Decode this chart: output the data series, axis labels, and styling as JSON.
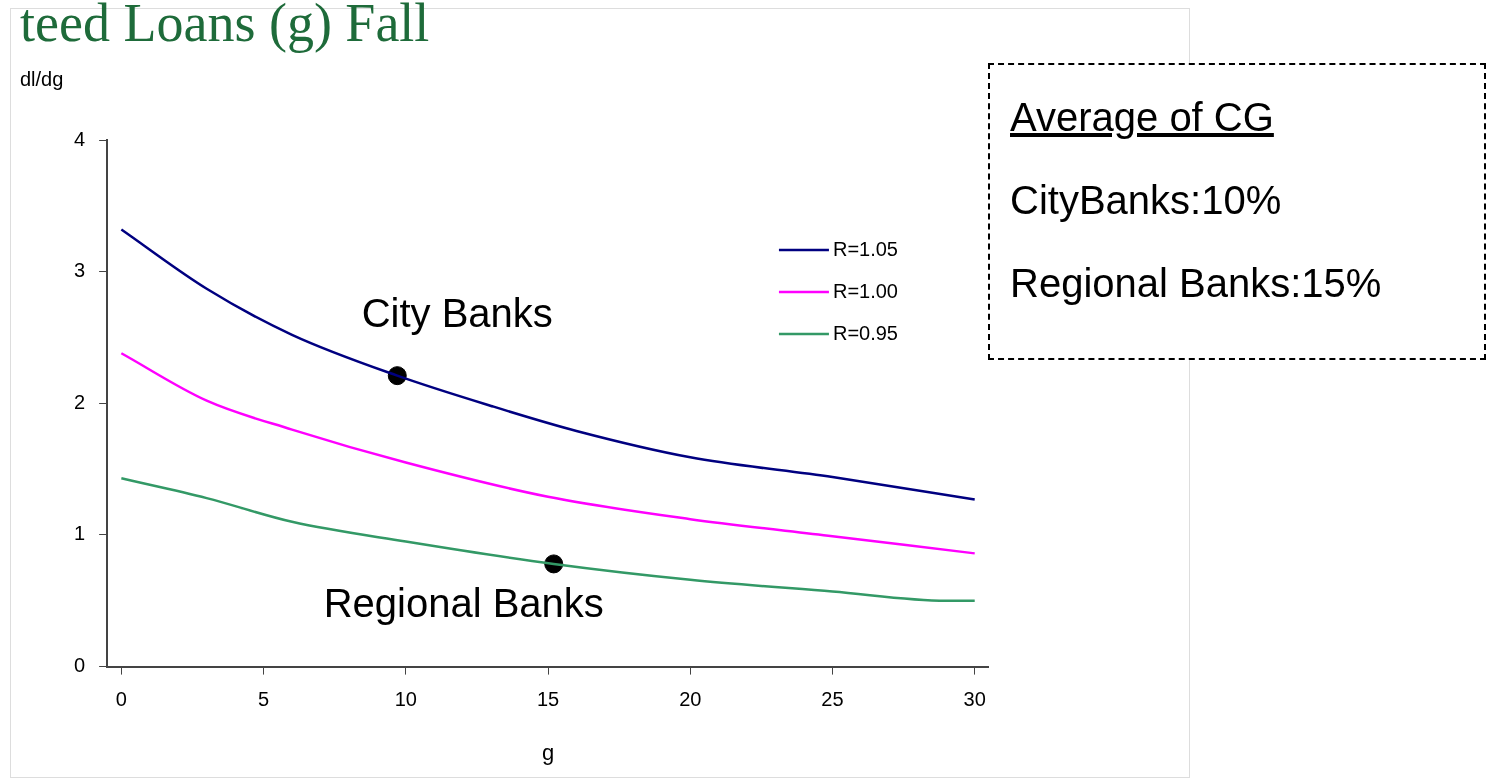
{
  "chart_data": {
    "type": "line",
    "title": "teed Loans (g) Fall",
    "xlabel": "g",
    "ylabel": "dl/dg",
    "xlim": [
      -0.5,
      30.5
    ],
    "xticks": [
      0,
      5,
      10,
      15,
      20,
      25,
      30
    ],
    "ylim": [
      0,
      4
    ],
    "yticks": [
      0,
      1,
      2,
      3,
      4
    ],
    "grid": false,
    "legend": "top right",
    "marker": "none",
    "line_style": "solid",
    "series": [
      {
        "name": "R=1.05",
        "color": "#000080",
        "x": [
          0,
          3,
          6,
          9.7,
          13,
          16,
          20,
          25,
          30
        ],
        "values": [
          3.32,
          2.87,
          2.52,
          2.21,
          1.98,
          1.79,
          1.59,
          1.44,
          1.27
        ]
      },
      {
        "name": "R=1.00",
        "color": "#ff00ff",
        "x": [
          0,
          3,
          6,
          10,
          15,
          20,
          25,
          30
        ],
        "values": [
          2.38,
          2.02,
          1.8,
          1.55,
          1.29,
          1.12,
          0.99,
          0.86
        ]
      },
      {
        "name": "R=0.95",
        "color": "#339966",
        "x": [
          0,
          3,
          6,
          10,
          15.2,
          20,
          25,
          29,
          30
        ],
        "values": [
          1.43,
          1.28,
          1.1,
          0.95,
          0.78,
          0.66,
          0.57,
          0.5,
          0.5
        ]
      },
      {
        "type": "scatter",
        "color": "#000000",
        "marker": "circle",
        "x": [
          9.7,
          15.2
        ],
        "values": [
          2.21,
          0.78
        ]
      }
    ],
    "annotations": [
      {
        "text": "City Banks",
        "x": 9.7,
        "y": 2.21
      },
      {
        "text": "Regional Banks",
        "x": 15.2,
        "y": 0.78
      },
      "Average of CG",
      "CityBanks:10%",
      "Regional Banks:15%"
    ]
  }
}
